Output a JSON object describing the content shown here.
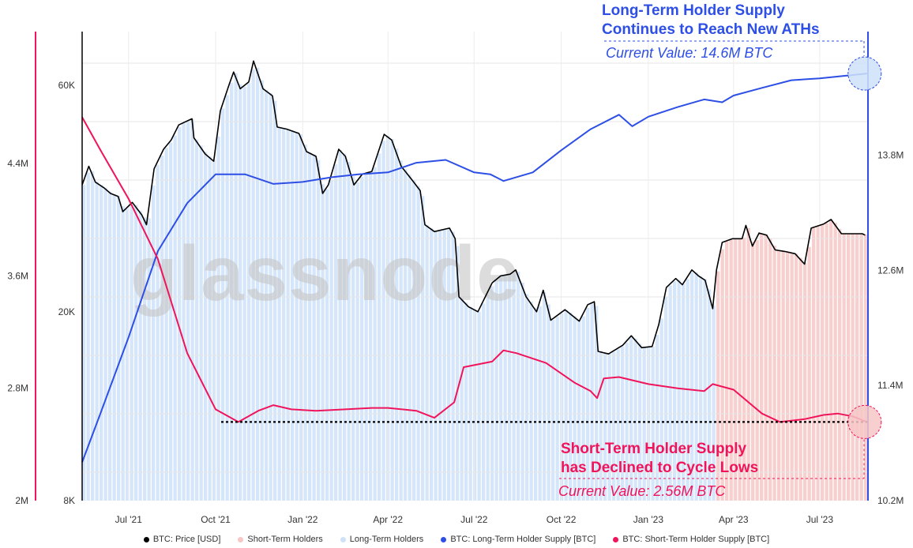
{
  "chart_data": {
    "type": "area",
    "title": "",
    "watermark": "glassnode",
    "x_tick_labels": [
      "Jul '21",
      "Oct '21",
      "Jan '22",
      "Apr '22",
      "Jul '22",
      "Oct '22",
      "Jan '23",
      "Apr '23",
      "Jul '23"
    ],
    "x_tick_dates": [
      "2021-07-01",
      "2021-10-01",
      "2022-01-01",
      "2022-04-01",
      "2022-07-01",
      "2022-10-01",
      "2023-01-01",
      "2023-04-01",
      "2023-07-01"
    ],
    "x_range": [
      "2021-05-13",
      "2023-08-21"
    ],
    "axes": {
      "price": {
        "label_ticks": [
          "8K",
          "20K",
          "60K"
        ],
        "values": [
          8000,
          20000,
          60000
        ],
        "scale": "log",
        "range": [
          8000,
          60000
        ],
        "side": "left-inner"
      },
      "sth": {
        "label_ticks": [
          "2M",
          "2.8M",
          "3.6M",
          "4.4M"
        ],
        "values": [
          2.0,
          2.8,
          3.6,
          4.4
        ],
        "unit": "M BTC",
        "range": [
          2.0,
          4.8
        ],
        "side": "left-outer",
        "color": "#f0145a"
      },
      "lth": {
        "label_ticks": [
          "10.2M",
          "11.4M",
          "12.6M",
          "13.8M"
        ],
        "values": [
          10.2,
          11.4,
          12.6,
          13.8
        ],
        "unit": "M BTC",
        "range": [
          10.2,
          14.7
        ],
        "side": "right",
        "color": "#2e4fe6"
      }
    },
    "grid": true,
    "legend_position": "bottom",
    "legend": [
      {
        "label": "BTC: Price [USD]",
        "color": "#000000"
      },
      {
        "label": "Short-Term Holders",
        "color": "#f7c7c7"
      },
      {
        "label": "Long-Term Holders",
        "color": "#cfe2f9"
      },
      {
        "label": "BTC: Long-Term Holder Supply [BTC]",
        "color": "#2e4fe6"
      },
      {
        "label": "BTC: Short-Term Holder Supply [BTC]",
        "color": "#f0145a"
      }
    ],
    "regime_change_date": "2023-03-10",
    "series": [
      {
        "name": "BTC: Price [USD]",
        "axis": "price",
        "color": "#000000",
        "points": [
          [
            "2021-05-13",
            37000
          ],
          [
            "2021-05-20",
            40500
          ],
          [
            "2021-05-27",
            37500
          ],
          [
            "2021-06-05",
            36500
          ],
          [
            "2021-06-12",
            35500
          ],
          [
            "2021-06-20",
            35000
          ],
          [
            "2021-06-25",
            32500
          ],
          [
            "2021-07-05",
            34000
          ],
          [
            "2021-07-15",
            32000
          ],
          [
            "2021-07-20",
            30500
          ],
          [
            "2021-07-28",
            40000
          ],
          [
            "2021-08-07",
            44000
          ],
          [
            "2021-08-15",
            46000
          ],
          [
            "2021-08-23",
            49500
          ],
          [
            "2021-09-06",
            51000
          ],
          [
            "2021-09-08",
            46500
          ],
          [
            "2021-09-20",
            43000
          ],
          [
            "2021-09-29",
            41500
          ],
          [
            "2021-10-06",
            53000
          ],
          [
            "2021-10-15",
            60000
          ],
          [
            "2021-10-20",
            64000
          ],
          [
            "2021-10-27",
            59000
          ],
          [
            "2021-11-05",
            61000
          ],
          [
            "2021-11-10",
            67500
          ],
          [
            "2021-11-20",
            59000
          ],
          [
            "2021-11-30",
            57000
          ],
          [
            "2021-12-05",
            49000
          ],
          [
            "2021-12-15",
            48500
          ],
          [
            "2021-12-28",
            47500
          ],
          [
            "2022-01-05",
            43500
          ],
          [
            "2022-01-15",
            42500
          ],
          [
            "2022-01-22",
            35500
          ],
          [
            "2022-01-28",
            37000
          ],
          [
            "2022-02-08",
            44000
          ],
          [
            "2022-02-15",
            42500
          ],
          [
            "2022-02-24",
            37000
          ],
          [
            "2022-03-05",
            39000
          ],
          [
            "2022-03-15",
            39500
          ],
          [
            "2022-03-28",
            47300
          ],
          [
            "2022-04-05",
            46000
          ],
          [
            "2022-04-15",
            40500
          ],
          [
            "2022-04-26",
            38000
          ],
          [
            "2022-05-05",
            36000
          ],
          [
            "2022-05-10",
            30500
          ],
          [
            "2022-05-20",
            29500
          ],
          [
            "2022-06-05",
            30000
          ],
          [
            "2022-06-11",
            28500
          ],
          [
            "2022-06-15",
            21500
          ],
          [
            "2022-06-25",
            20500
          ],
          [
            "2022-07-05",
            20000
          ],
          [
            "2022-07-20",
            23000
          ],
          [
            "2022-07-29",
            23800
          ],
          [
            "2022-08-08",
            24000
          ],
          [
            "2022-08-14",
            24500
          ],
          [
            "2022-08-25",
            21500
          ],
          [
            "2022-09-05",
            20000
          ],
          [
            "2022-09-12",
            22200
          ],
          [
            "2022-09-20",
            19200
          ],
          [
            "2022-10-05",
            20200
          ],
          [
            "2022-10-20",
            19100
          ],
          [
            "2022-10-29",
            20700
          ],
          [
            "2022-11-05",
            21000
          ],
          [
            "2022-11-09",
            16500
          ],
          [
            "2022-11-20",
            16300
          ],
          [
            "2022-12-05",
            17000
          ],
          [
            "2022-12-14",
            17800
          ],
          [
            "2022-12-25",
            16800
          ],
          [
            "2023-01-05",
            16900
          ],
          [
            "2023-01-12",
            18800
          ],
          [
            "2023-01-20",
            22500
          ],
          [
            "2023-01-30",
            23500
          ],
          [
            "2023-02-06",
            22800
          ],
          [
            "2023-02-16",
            24500
          ],
          [
            "2023-02-23",
            23800
          ],
          [
            "2023-03-02",
            23300
          ],
          [
            "2023-03-10",
            20300
          ],
          [
            "2023-03-14",
            24500
          ],
          [
            "2023-03-20",
            28000
          ],
          [
            "2023-03-31",
            28500
          ],
          [
            "2023-04-10",
            28500
          ],
          [
            "2023-04-14",
            30400
          ],
          [
            "2023-04-21",
            27500
          ],
          [
            "2023-04-28",
            29300
          ],
          [
            "2023-05-06",
            29000
          ],
          [
            "2023-05-15",
            27000
          ],
          [
            "2023-05-25",
            26800
          ],
          [
            "2023-06-05",
            26500
          ],
          [
            "2023-06-15",
            25200
          ],
          [
            "2023-06-22",
            30000
          ],
          [
            "2023-07-05",
            30600
          ],
          [
            "2023-07-13",
            31300
          ],
          [
            "2023-07-24",
            29200
          ],
          [
            "2023-08-05",
            29200
          ],
          [
            "2023-08-15",
            29200
          ],
          [
            "2023-08-18",
            29000
          ]
        ]
      },
      {
        "name": "BTC: Long-Term Holder Supply [BTC]",
        "axis": "lth",
        "color": "#2e4fe6",
        "points": [
          [
            "2021-05-13",
            10.6
          ],
          [
            "2021-06-01",
            11.1
          ],
          [
            "2021-07-01",
            11.9
          ],
          [
            "2021-08-01",
            12.8
          ],
          [
            "2021-09-01",
            13.3
          ],
          [
            "2021-10-01",
            13.6
          ],
          [
            "2021-11-01",
            13.6
          ],
          [
            "2021-12-01",
            13.5
          ],
          [
            "2022-01-01",
            13.52
          ],
          [
            "2022-02-01",
            13.57
          ],
          [
            "2022-03-01",
            13.6
          ],
          [
            "2022-04-01",
            13.62
          ],
          [
            "2022-05-01",
            13.72
          ],
          [
            "2022-06-01",
            13.75
          ],
          [
            "2022-07-01",
            13.62
          ],
          [
            "2022-07-18",
            13.6
          ],
          [
            "2022-08-01",
            13.53
          ],
          [
            "2022-09-01",
            13.62
          ],
          [
            "2022-10-01",
            13.85
          ],
          [
            "2022-11-01",
            14.07
          ],
          [
            "2022-12-01",
            14.22
          ],
          [
            "2022-12-15",
            14.1
          ],
          [
            "2023-01-01",
            14.2
          ],
          [
            "2023-02-01",
            14.3
          ],
          [
            "2023-03-01",
            14.38
          ],
          [
            "2023-03-20",
            14.35
          ],
          [
            "2023-04-01",
            14.42
          ],
          [
            "2023-05-01",
            14.5
          ],
          [
            "2023-06-01",
            14.58
          ],
          [
            "2023-07-01",
            14.6
          ],
          [
            "2023-08-20",
            14.65
          ]
        ]
      },
      {
        "name": "BTC: Short-Term Holder Supply [BTC]",
        "axis": "sth",
        "color": "#f0145a",
        "points": [
          [
            "2021-05-13",
            4.73
          ],
          [
            "2021-06-01",
            4.5
          ],
          [
            "2021-07-01",
            4.15
          ],
          [
            "2021-08-01",
            3.72
          ],
          [
            "2021-09-01",
            3.05
          ],
          [
            "2021-10-01",
            2.65
          ],
          [
            "2021-10-25",
            2.56
          ],
          [
            "2021-11-15",
            2.64
          ],
          [
            "2021-12-01",
            2.68
          ],
          [
            "2021-12-20",
            2.65
          ],
          [
            "2022-01-15",
            2.64
          ],
          [
            "2022-02-15",
            2.65
          ],
          [
            "2022-03-15",
            2.66
          ],
          [
            "2022-04-01",
            2.66
          ],
          [
            "2022-05-01",
            2.64
          ],
          [
            "2022-05-20",
            2.59
          ],
          [
            "2022-06-10",
            2.7
          ],
          [
            "2022-06-20",
            2.95
          ],
          [
            "2022-07-20",
            2.99
          ],
          [
            "2022-08-01",
            3.07
          ],
          [
            "2022-08-15",
            3.05
          ],
          [
            "2022-09-15",
            2.98
          ],
          [
            "2022-10-15",
            2.84
          ],
          [
            "2022-11-01",
            2.78
          ],
          [
            "2022-11-08",
            2.73
          ],
          [
            "2022-11-15",
            2.87
          ],
          [
            "2022-12-01",
            2.88
          ],
          [
            "2023-01-01",
            2.83
          ],
          [
            "2023-02-01",
            2.8
          ],
          [
            "2023-03-01",
            2.78
          ],
          [
            "2023-03-10",
            2.83
          ],
          [
            "2023-04-01",
            2.79
          ],
          [
            "2023-05-01",
            2.62
          ],
          [
            "2023-05-20",
            2.56
          ],
          [
            "2023-06-15",
            2.58
          ],
          [
            "2023-07-05",
            2.61
          ],
          [
            "2023-07-20",
            2.62
          ],
          [
            "2023-08-05",
            2.6
          ],
          [
            "2023-08-20",
            2.56
          ]
        ]
      }
    ],
    "annotations": {
      "lth": {
        "title_line1": "Long-Term Holder Supply",
        "title_line2": "Continues to Reach New ATHs",
        "subtitle": "Current Value: 14.6M BTC",
        "color": "#2e4fe6"
      },
      "sth": {
        "title_line1": "Short-Term Holder Supply",
        "title_line2": "has Declined to Cycle Lows",
        "subtitle": "Current Value: 2.56M BTC",
        "color": "#f0145a",
        "reference_level": 2.56
      }
    }
  }
}
